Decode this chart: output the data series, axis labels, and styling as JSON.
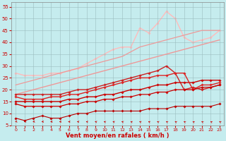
{
  "title": "",
  "xlabel": "Vent moyen/en rafales ( km/h )",
  "ylabel": "",
  "xlim": [
    -0.5,
    23.5
  ],
  "ylim": [
    5,
    57
  ],
  "yticks": [
    5,
    10,
    15,
    20,
    25,
    30,
    35,
    40,
    45,
    50,
    55
  ],
  "xticks": [
    0,
    1,
    2,
    3,
    4,
    5,
    6,
    7,
    8,
    9,
    10,
    11,
    12,
    13,
    14,
    15,
    16,
    17,
    18,
    19,
    20,
    21,
    22,
    23
  ],
  "background_color": "#c5ecee",
  "grid_color": "#9bbdbe",
  "lines": [
    {
      "x": [
        0,
        1,
        2,
        3,
        4,
        5,
        6,
        7,
        8,
        9,
        10,
        11,
        12,
        13,
        14,
        15,
        16,
        17,
        18,
        19,
        20,
        21,
        22,
        23
      ],
      "y": [
        8,
        7,
        8,
        9,
        8,
        8,
        9,
        10,
        10,
        11,
        11,
        11,
        11,
        11,
        11,
        12,
        12,
        12,
        13,
        13,
        13,
        13,
        13,
        14
      ],
      "color": "#bb0000",
      "lw": 0.8,
      "marker": "D",
      "ms": 1.8,
      "zorder": 5
    },
    {
      "x": [
        0,
        1,
        2,
        3,
        4,
        5,
        6,
        7,
        8,
        9,
        10,
        11,
        12,
        13,
        14,
        15,
        16,
        17,
        18,
        19,
        20,
        21,
        22,
        23
      ],
      "y": [
        14,
        13,
        13,
        13,
        13,
        13,
        14,
        14,
        15,
        15,
        16,
        16,
        17,
        17,
        18,
        18,
        19,
        19,
        20,
        20,
        20,
        21,
        21,
        22
      ],
      "color": "#cc0000",
      "lw": 0.9,
      "marker": "D",
      "ms": 1.8,
      "zorder": 5
    },
    {
      "x": [
        0,
        1,
        2,
        3,
        4,
        5,
        6,
        7,
        8,
        9,
        10,
        11,
        12,
        13,
        14,
        15,
        16,
        17,
        18,
        19,
        20,
        21,
        22,
        23
      ],
      "y": [
        15,
        15,
        15,
        15,
        15,
        15,
        16,
        16,
        17,
        17,
        18,
        18,
        19,
        20,
        20,
        21,
        22,
        22,
        23,
        23,
        23,
        24,
        24,
        24
      ],
      "color": "#cc0000",
      "lw": 1.0,
      "marker": "D",
      "ms": 1.8,
      "zorder": 4
    },
    {
      "x": [
        0,
        1,
        2,
        3,
        4,
        5,
        6,
        7,
        8,
        9,
        10,
        11,
        12,
        13,
        14,
        15,
        16,
        17,
        18,
        19,
        20,
        21,
        22,
        23
      ],
      "y": [
        17,
        16,
        16,
        16,
        17,
        17,
        18,
        18,
        19,
        20,
        21,
        22,
        23,
        24,
        25,
        25,
        26,
        26,
        27,
        27,
        20,
        22,
        22,
        23
      ],
      "color": "#dd2222",
      "lw": 1.0,
      "marker": "D",
      "ms": 1.8,
      "zorder": 4
    },
    {
      "x": [
        0,
        1,
        2,
        3,
        4,
        5,
        6,
        7,
        8,
        9,
        10,
        11,
        12,
        13,
        14,
        15,
        16,
        17,
        18,
        19,
        20,
        21,
        22,
        23
      ],
      "y": [
        18,
        18,
        18,
        18,
        18,
        18,
        19,
        20,
        20,
        21,
        22,
        23,
        24,
        25,
        26,
        27,
        28,
        30,
        27,
        20,
        21,
        20,
        21,
        22
      ],
      "color": "#cc2222",
      "lw": 1.0,
      "marker": "D",
      "ms": 1.8,
      "zorder": 3
    },
    {
      "x": [
        0,
        1,
        2,
        3,
        4,
        5,
        6,
        7,
        8,
        9,
        10,
        11,
        12,
        13,
        14,
        15,
        16,
        17,
        18,
        19,
        20,
        21,
        22,
        23
      ],
      "y": [
        18,
        19,
        20,
        21,
        22,
        23,
        24,
        25,
        26,
        27,
        28,
        29,
        30,
        31,
        32,
        33,
        34,
        35,
        36,
        37,
        38,
        39,
        40,
        41
      ],
      "color": "#ee9999",
      "lw": 1.0,
      "marker": null,
      "ms": 0,
      "zorder": 2
    },
    {
      "x": [
        0,
        1,
        2,
        3,
        4,
        5,
        6,
        7,
        8,
        9,
        10,
        11,
        12,
        13,
        14,
        15,
        16,
        17,
        18,
        19,
        20,
        21,
        22,
        23
      ],
      "y": [
        22,
        23,
        24,
        25,
        26,
        27,
        28,
        29,
        30,
        31,
        32,
        33,
        34,
        36,
        38,
        39,
        40,
        41,
        42,
        43,
        44,
        45,
        45,
        45
      ],
      "color": "#ee9999",
      "lw": 0.9,
      "marker": null,
      "ms": 0,
      "zorder": 2
    },
    {
      "x": [
        0,
        1,
        2,
        3,
        4,
        5,
        6,
        7,
        8,
        9,
        10,
        11,
        12,
        13,
        14,
        15,
        16,
        17,
        18,
        19,
        20,
        21,
        22,
        23
      ],
      "y": [
        27,
        26,
        26,
        26,
        27,
        27,
        28,
        29,
        31,
        33,
        35,
        37,
        38,
        38,
        46,
        44,
        48,
        53,
        50,
        42,
        40,
        41,
        42,
        45
      ],
      "color": "#ffbbbb",
      "lw": 1.0,
      "marker": "D",
      "ms": 1.8,
      "zorder": 1
    }
  ],
  "arrow_angles": [
    220,
    220,
    210,
    200,
    190,
    180,
    170,
    160,
    150,
    145,
    140,
    140,
    140,
    135,
    135,
    135,
    135,
    130,
    130,
    130,
    130,
    130,
    130,
    130
  ]
}
